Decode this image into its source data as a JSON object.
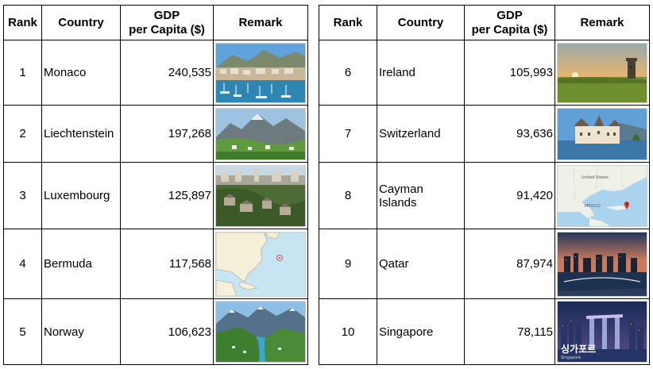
{
  "headers": {
    "rank": "Rank",
    "country": "Country",
    "gdp_line1": "GDP",
    "gdp_line2": "per Capita ($)",
    "remark": "Remark"
  },
  "left_rows": [
    {
      "rank": "1",
      "country": "Monaco",
      "gdp": "240,535",
      "image": "monaco-harbor-photo"
    },
    {
      "rank": "2",
      "country": "Liechtenstein",
      "gdp": "197,268",
      "image": "liechtenstein-mountains-photo"
    },
    {
      "rank": "3",
      "country": "Luxembourg",
      "gdp": "125,897",
      "image": "luxembourg-city-photo"
    },
    {
      "rank": "4",
      "country": "Bermuda",
      "gdp": "117,568",
      "image": "bermuda-location-map"
    },
    {
      "rank": "5",
      "country": "Norway",
      "gdp": "106,623",
      "image": "norway-fjord-photo"
    }
  ],
  "right_rows": [
    {
      "rank": "6",
      "country": "Ireland",
      "gdp": "105,993",
      "image": "ireland-castle-sunset-photo"
    },
    {
      "rank": "7",
      "country": "Switzerland",
      "gdp": "93,636",
      "image": "switzerland-chillon-castle-photo"
    },
    {
      "rank": "8",
      "country": "Cayman Islands",
      "gdp": "91,420",
      "image": "cayman-islands-map"
    },
    {
      "rank": "9",
      "country": "Qatar",
      "gdp": "87,974",
      "image": "qatar-skyline-photo"
    },
    {
      "rank": "10",
      "country": "Singapore",
      "gdp": "78,115",
      "image": "singapore-skyline-photo"
    }
  ],
  "map_labels": {
    "united_states": "United States",
    "mexico": "MEXICO"
  },
  "singapore_overlay": {
    "title": "싱가포르",
    "subtitle": "Singapore"
  }
}
